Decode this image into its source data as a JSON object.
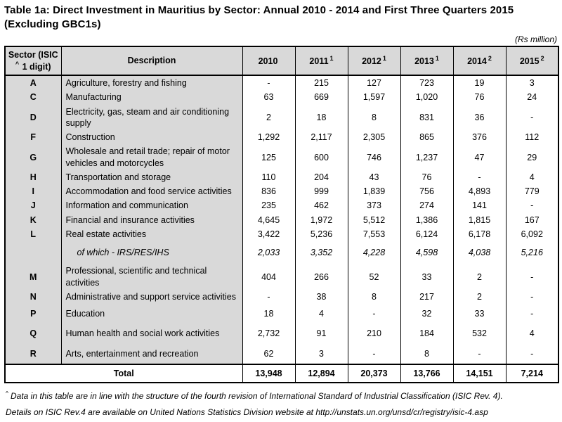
{
  "title": {
    "line1": "Table 1a: Direct Investment in Mauritius by Sector: Annual 2010 - 2014 and First Three Quarters 2015",
    "line2": "(Excluding GBC1s)"
  },
  "unit_note": "(Rs million)",
  "colors": {
    "shade": "#d9d9d9",
    "border": "#000000",
    "text": "#000000"
  },
  "table": {
    "header": {
      "sector_line1": "Sector (ISIC",
      "sector_sup": "^",
      "sector_line2": " 1 digit)",
      "description": "Description",
      "years": [
        {
          "label": "2010",
          "sup": ""
        },
        {
          "label": "2011",
          "sup": "1"
        },
        {
          "label": "2012",
          "sup": "1"
        },
        {
          "label": "2013",
          "sup": "1"
        },
        {
          "label": "2014",
          "sup": "2"
        },
        {
          "label": "2015",
          "sup": "2"
        }
      ]
    },
    "rows": [
      {
        "sector": "A",
        "description": "Agriculture, forestry and fishing",
        "italic": false,
        "values": [
          "-",
          "215",
          "127",
          "723",
          "19",
          "3"
        ]
      },
      {
        "sector": "C",
        "description": "Manufacturing",
        "italic": false,
        "values": [
          "63",
          "669",
          "1,597",
          "1,020",
          "76",
          "24"
        ]
      },
      {
        "sector": "D",
        "description": "Electricity, gas, steam and air conditioning supply",
        "italic": false,
        "values": [
          "2",
          "18",
          "8",
          "831",
          "36",
          "-"
        ]
      },
      {
        "sector": "F",
        "description": "Construction",
        "italic": false,
        "values": [
          "1,292",
          "2,117",
          "2,305",
          "865",
          "376",
          "112"
        ]
      },
      {
        "sector": "G",
        "description": "Wholesale and retail trade; repair of motor vehicles and motorcycles",
        "italic": false,
        "values": [
          "125",
          "600",
          "746",
          "1,237",
          "47",
          "29"
        ]
      },
      {
        "sector": "H",
        "description": "Transportation and storage",
        "italic": false,
        "values": [
          "110",
          "204",
          "43",
          "76",
          "-",
          "4"
        ]
      },
      {
        "sector": "I",
        "description": "Accommodation and food service activities",
        "italic": false,
        "values": [
          "836",
          "999",
          "1,839",
          "756",
          "4,893",
          "779"
        ]
      },
      {
        "sector": "J",
        "description": "Information and communication",
        "italic": false,
        "values": [
          "235",
          "462",
          "373",
          "274",
          "141",
          "-"
        ]
      },
      {
        "sector": "K",
        "description": "Financial and insurance activities",
        "italic": false,
        "values": [
          "4,645",
          "1,972",
          "5,512",
          "1,386",
          "1,815",
          "167"
        ]
      },
      {
        "sector": "L",
        "description": "Real estate activities",
        "italic": false,
        "values": [
          "3,422",
          "5,236",
          "7,553",
          "6,124",
          "6,178",
          "6,092"
        ]
      },
      {
        "sector": "",
        "description": "of which - IRS/RES/IHS",
        "italic": true,
        "values": [
          "2,033",
          "3,352",
          "4,228",
          "4,598",
          "4,038",
          "5,216"
        ]
      },
      {
        "sector": "M",
        "description": "Professional, scientific and technical activities",
        "italic": false,
        "values": [
          "404",
          "266",
          "52",
          "33",
          "2",
          "-"
        ]
      },
      {
        "sector": "N",
        "description": "Administrative and support service activities",
        "italic": false,
        "values": [
          "-",
          "38",
          "8",
          "217",
          "2",
          "-"
        ]
      },
      {
        "sector": "P",
        "description": "Education",
        "italic": false,
        "values": [
          "18",
          "4",
          "-",
          "32",
          "33",
          "-"
        ]
      },
      {
        "sector": "Q",
        "description": "Human health and social work activities",
        "italic": false,
        "values": [
          "2,732",
          "91",
          "210",
          "184",
          "532",
          "4"
        ]
      },
      {
        "sector": "R",
        "description": "Arts, entertainment and recreation",
        "italic": false,
        "values": [
          "62",
          "3",
          "-",
          "8",
          "-",
          "-"
        ]
      }
    ],
    "total": {
      "label": "Total",
      "values": [
        "13,948",
        "12,894",
        "20,373",
        "13,766",
        "14,151",
        "7,214"
      ]
    }
  },
  "footnotes": [
    {
      "marker": "^",
      "text": "Data in this table are in line with the structure of the fourth revision of International Standard of Industrial  Classification  (ISIC Rev. 4)."
    },
    {
      "marker": "",
      "text": "Details on ISIC Rev.4 are available on United Nations Statistics Division website at  http://unstats.un.org/unsd/cr/registry/isic-4.asp"
    }
  ]
}
